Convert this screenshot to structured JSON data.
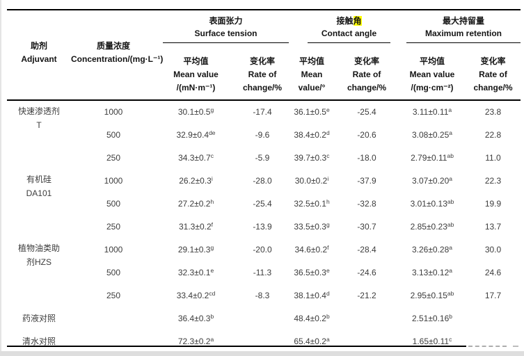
{
  "t": {
    "adj_zh": "助剂",
    "adj_en": "Adjuvant",
    "conc_zh": "质量浓度",
    "conc_en": "Concentration/(mg·L⁻¹)",
    "group_st_zh": "表面张力",
    "group_st_en": "Surface tension",
    "group_ca_zh_pre": "接触",
    "group_ca_zh_hl": "角",
    "group_ca_en": "Contact angle",
    "group_mr_zh": "最大持留量",
    "group_mr_en": "Maximum retention",
    "highlight_color": "#ffff00",
    "sub_st_mean": [
      "平均值",
      "Mean value",
      "/(mN·m⁻¹)"
    ],
    "sub_st_rate": [
      "变化率",
      "Rate of",
      "change/%"
    ],
    "sub_ca_mean": [
      "平均值",
      "Mean",
      "value/°"
    ],
    "sub_ca_rate": [
      "变化率",
      "Rate of",
      "change/%"
    ],
    "sub_mr_mean": [
      "平均值",
      "Mean value",
      "/(mg·cm⁻²)"
    ],
    "sub_mr_rate": [
      "变化率",
      "Rate of",
      "change/%"
    ],
    "rows": [
      {
        "adj1": "快速渗透剂",
        "adj2": "T",
        "conc": "1000",
        "st": "30.1±0.5",
        "st_s": "g",
        "st_r": "-17.4",
        "ca": "36.1±0.5",
        "ca_s": "e",
        "ca_r": "-25.4",
        "mr": "3.11±0.11",
        "mr_s": "a",
        "mr_r": "23.8"
      },
      {
        "conc": "500",
        "st": "32.9±0.4",
        "st_s": "de",
        "st_r": "-9.6",
        "ca": "38.4±0.2",
        "ca_s": "d",
        "ca_r": "-20.6",
        "mr": "3.08±0.25",
        "mr_s": "a",
        "mr_r": "22.8"
      },
      {
        "conc": "250",
        "st": "34.3±0.7",
        "st_s": "c",
        "st_r": "-5.9",
        "ca": "39.7±0.3",
        "ca_s": "c",
        "ca_r": "-18.0",
        "mr": "2.79±0.11",
        "mr_s": "ab",
        "mr_r": "11.0"
      },
      {
        "adj1": "有机硅",
        "adj2": "DA101",
        "conc": "1000",
        "st": "26.2±0.3",
        "st_s": "i",
        "st_r": "-28.0",
        "ca": "30.0±0.2",
        "ca_s": "i",
        "ca_r": "-37.9",
        "mr": "3.07±0.20",
        "mr_s": "a",
        "mr_r": "22.3"
      },
      {
        "conc": "500",
        "st": "27.2±0.2",
        "st_s": "h",
        "st_r": "-25.4",
        "ca": "32.5±0.1",
        "ca_s": "h",
        "ca_r": "-32.8",
        "mr": "3.01±0.13",
        "mr_s": "ab",
        "mr_r": "19.9"
      },
      {
        "conc": "250",
        "st": "31.3±0.2",
        "st_s": "f",
        "st_r": "-13.9",
        "ca": "33.5±0.3",
        "ca_s": "g",
        "ca_r": "-30.7",
        "mr": "2.85±0.23",
        "mr_s": "ab",
        "mr_r": "13.7"
      },
      {
        "adj1": "植物油类助",
        "adj2": "剂HZS",
        "conc": "1000",
        "st": "29.1±0.3",
        "st_s": "g",
        "st_r": "-20.0",
        "ca": "34.6±0.2",
        "ca_s": "f",
        "ca_r": "-28.4",
        "mr": "3.26±0.28",
        "mr_s": "a",
        "mr_r": "30.0"
      },
      {
        "conc": "500",
        "st": "32.3±0.1",
        "st_s": "e",
        "st_r": "-11.3",
        "ca": "36.5±0.3",
        "ca_s": "e",
        "ca_r": "-24.6",
        "mr": "3.13±0.12",
        "mr_s": "a",
        "mr_r": "24.6"
      },
      {
        "conc": "250",
        "st": "33.4±0.2",
        "st_s": "cd",
        "st_r": "-8.3",
        "ca": "38.1±0.4",
        "ca_s": "d",
        "ca_r": "-21.2",
        "mr": "2.95±0.15",
        "mr_s": "ab",
        "mr_r": "17.7"
      },
      {
        "adj1": "药液对照",
        "st": "36.4±0.3",
        "st_s": "b",
        "ca": "48.4±0.2",
        "ca_s": "b",
        "mr": "2.51±0.16",
        "mr_s": "b"
      },
      {
        "adj1": "清水对照",
        "st": "72.3±0.2",
        "st_s": "a",
        "ca": "65.4±0.2",
        "ca_s": "a",
        "mr": "1.65±0.11",
        "mr_s": "c"
      }
    ]
  }
}
